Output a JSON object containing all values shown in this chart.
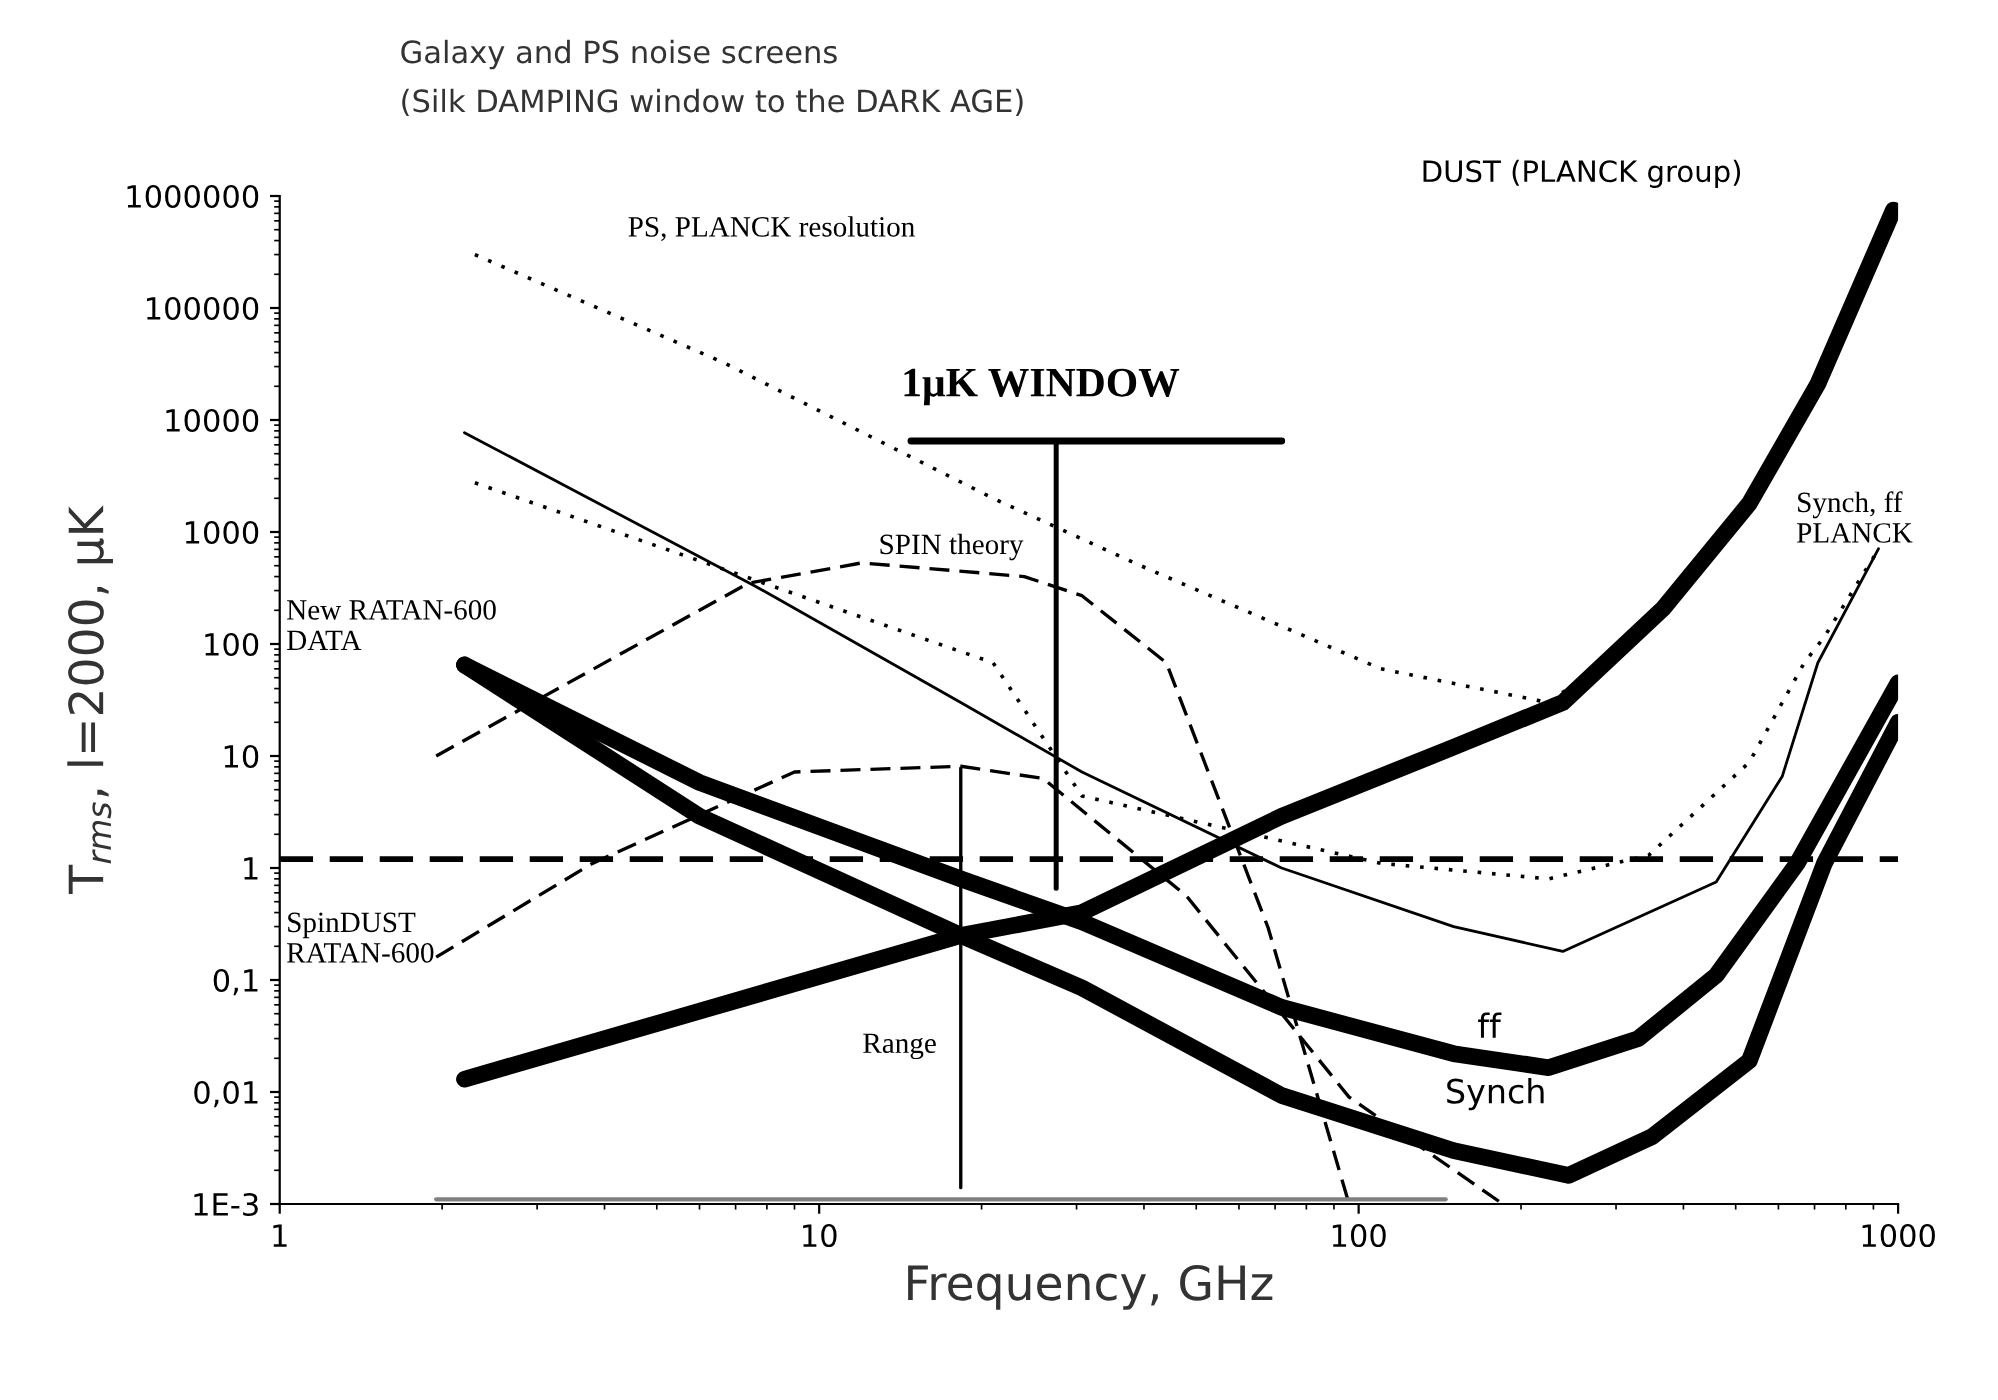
{
  "chart_data": {
    "type": "line",
    "title": "Galaxy and PS noise screens",
    "subtitle": "(Silk DAMPING window to the DARK AGE)",
    "xlabel": "Frequency, GHz",
    "ylabel": "T$_{rms}$, l=2000, μK",
    "log": "xy",
    "grid": false,
    "xlim": [
      1,
      1000
    ],
    "ylim": [
      0.001,
      1000000
    ],
    "xticks": [
      1,
      10,
      100,
      1000
    ],
    "yticks": [
      {
        "value": 0.001,
        "label": "1E-3"
      },
      {
        "value": 0.01,
        "label": "0,01"
      },
      {
        "value": 0.1,
        "label": "0,1"
      },
      1,
      10,
      100,
      1000,
      10000,
      100000,
      1000000
    ],
    "series": [
      {
        "color": "#000000",
        "line_style": "solid",
        "x": [
          2.2,
          6,
          18.3,
          30.7,
          72,
          150,
          245,
          350,
          530,
          730,
          1000
        ],
        "values": [
          65,
          2.9,
          0.25,
          0.085,
          0.0093,
          0.003,
          0.0018,
          0.004,
          0.019,
          1.1,
          20
        ]
      },
      {
        "color": "#000000",
        "line_style": "solid",
        "x": [
          2.2,
          6,
          18.3,
          30.7,
          72,
          150,
          225,
          330,
          460,
          650,
          1000
        ],
        "values": [
          65,
          5.8,
          0.8,
          0.33,
          0.057,
          0.022,
          0.0165,
          0.03,
          0.11,
          1.1,
          45
        ]
      },
      {
        "color": "#000000",
        "line_style": "solid",
        "x": [
          2.2,
          5.1,
          18.3,
          30.7,
          72,
          150,
          239,
          367,
          530,
          710,
          980
        ],
        "values": [
          0.013,
          0.042,
          0.25,
          0.4,
          2.9,
          12,
          30,
          208,
          1800,
          21000,
          750000
        ]
      },
      {
        "color": "#000000",
        "line_style": "solid",
        "x": [
          2.2,
          7.6,
          18.3,
          30.7,
          72,
          150,
          239,
          460,
          610,
          710,
          920
        ],
        "values": [
          7700,
          330,
          30,
          7.2,
          1,
          0.3,
          0.18,
          0.75,
          6.6,
          68,
          710
        ]
      },
      {
        "color": "#000000",
        "line_style": "dotted",
        "x": [
          2.3,
          6.7,
          21,
          40.6,
          110,
          225,
          285
        ],
        "values": [
          300000,
          32000,
          2000,
          470,
          60,
          30,
          68
        ]
      },
      {
        "color": "#000000",
        "line_style": "dotted",
        "x": [
          2.3,
          21,
          30.7,
          110,
          225,
          345,
          530,
          670,
          730,
          920
        ],
        "values": [
          2750,
          68,
          4.4,
          1.1,
          0.8,
          1.3,
          8.8,
          68,
          116,
          700
        ]
      },
      {
        "color": "#000000",
        "line_style": "dashed",
        "x": [
          1.95,
          7.4,
          12,
          24,
          30.7,
          44,
          68,
          96
        ],
        "values": [
          10,
          350,
          530,
          400,
          270,
          68,
          0.29,
          0.001
        ]
      },
      {
        "color": "#000000",
        "line_style": "dashed",
        "x": [
          1.95,
          3.8,
          9,
          18.3,
          26,
          48,
          96,
          185
        ],
        "values": [
          0.16,
          1.1,
          7.2,
          8.1,
          6.3,
          0.56,
          0.009,
          0.001
        ]
      },
      {
        "color": "#808080",
        "line_style": "solid",
        "x": [
          1.95,
          145
        ],
        "values": [
          0.0011,
          0.0011
        ]
      },
      {
        "color": "#000000",
        "line_style": "solid",
        "x": [
          18.3,
          18.3
        ],
        "values": [
          7.8,
          0.0014
        ]
      },
      {
        "color": "#000000",
        "line_style": "solid",
        "x": [
          27.5,
          27.5
        ],
        "values": [
          6500,
          0.66
        ]
      },
      {
        "color": "#000000",
        "line_style": "solid",
        "x": [
          14.8,
          72
        ],
        "values": [
          6500,
          6500
        ]
      }
    ],
    "ref_lines": [
      {
        "axis": "y",
        "value": 1.2,
        "color": "#000000",
        "line_style": "dashed"
      }
    ],
    "annotations": [
      "DUST (PLANCK group)",
      "PS, PLANCK resolution",
      "1μK WINDOW",
      "Synch, ff\nPLANCK",
      "SPIN theory",
      "New RATAN-600\nDATA",
      "SpinDUST\nRATAN-600",
      "Range",
      "ff",
      "Synch"
    ]
  }
}
